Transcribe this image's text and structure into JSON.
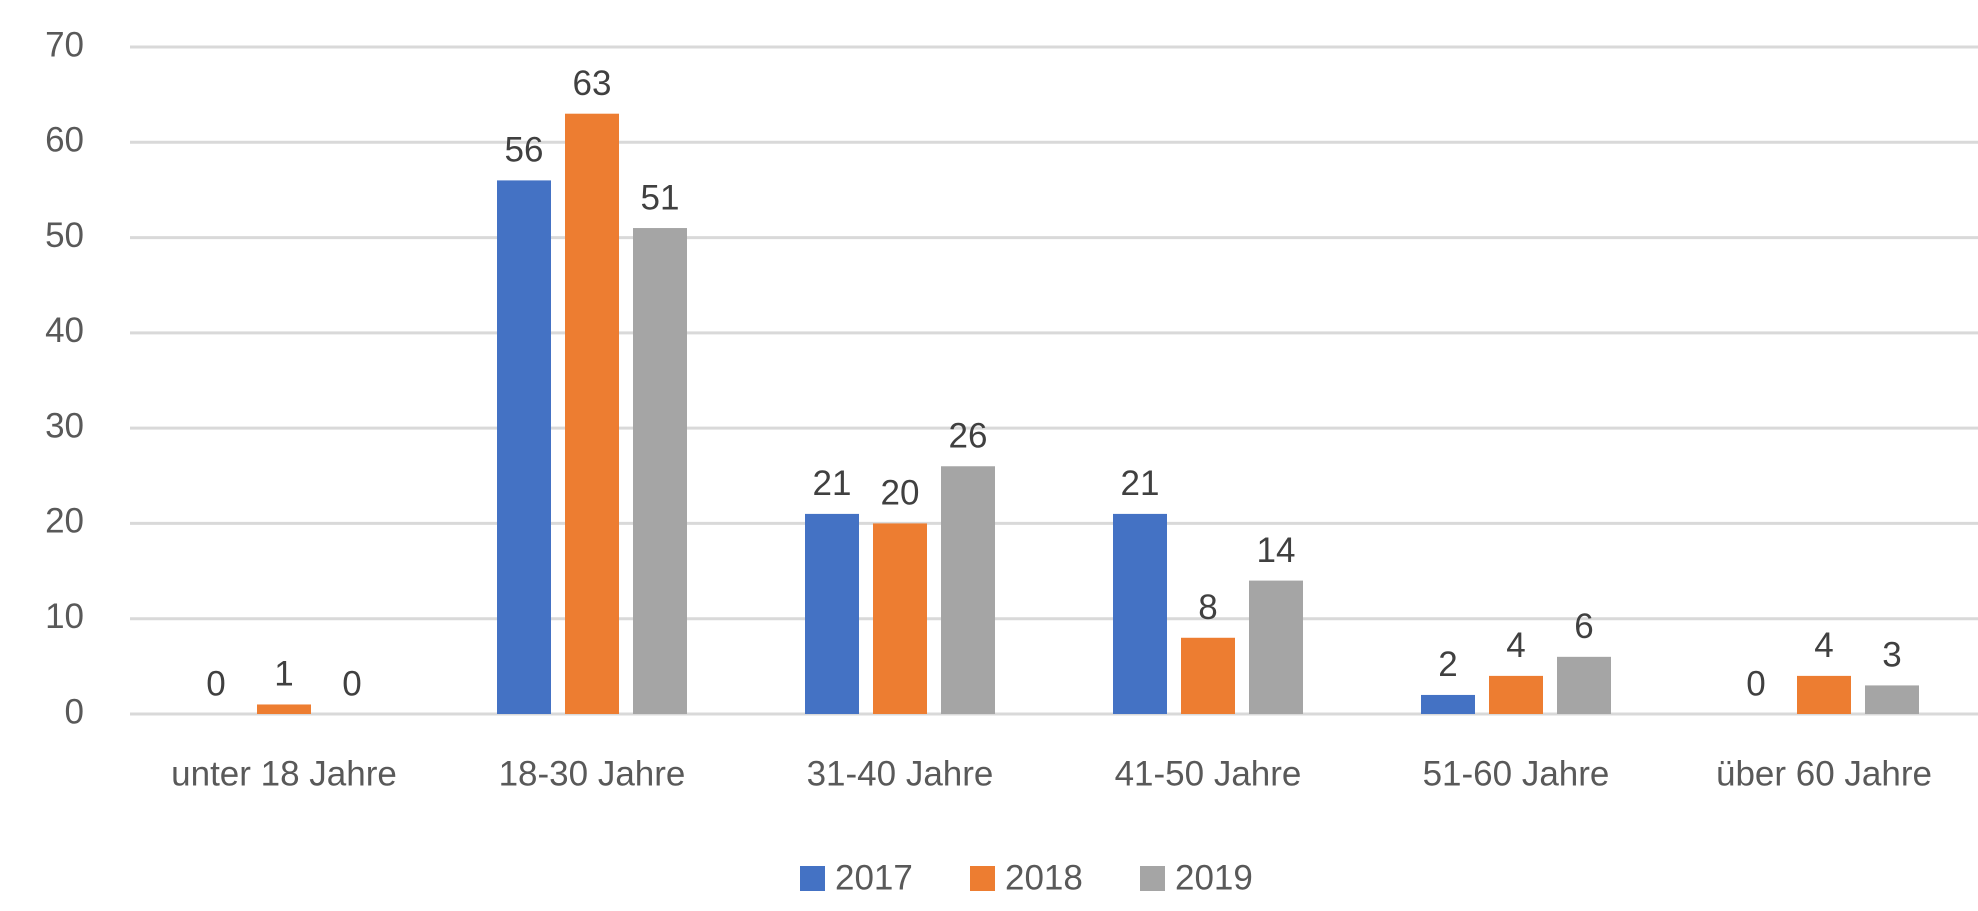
{
  "chart_data": {
    "type": "bar",
    "categories": [
      "unter 18 Jahre",
      "18-30 Jahre",
      "31-40 Jahre",
      "41-50 Jahre",
      "51-60 Jahre",
      "über 60 Jahre"
    ],
    "series": [
      {
        "name": "2017",
        "color": "#4472c4",
        "values": [
          0,
          56,
          21,
          21,
          2,
          0
        ]
      },
      {
        "name": "2018",
        "color": "#ed7d31",
        "values": [
          1,
          63,
          20,
          8,
          4,
          4
        ]
      },
      {
        "name": "2019",
        "color": "#a5a5a5",
        "values": [
          0,
          51,
          26,
          14,
          6,
          3
        ]
      }
    ],
    "ylim": [
      0,
      70
    ],
    "yticks": [
      0,
      10,
      20,
      30,
      40,
      50,
      60,
      70
    ],
    "grid": true,
    "legend": "bottom"
  }
}
